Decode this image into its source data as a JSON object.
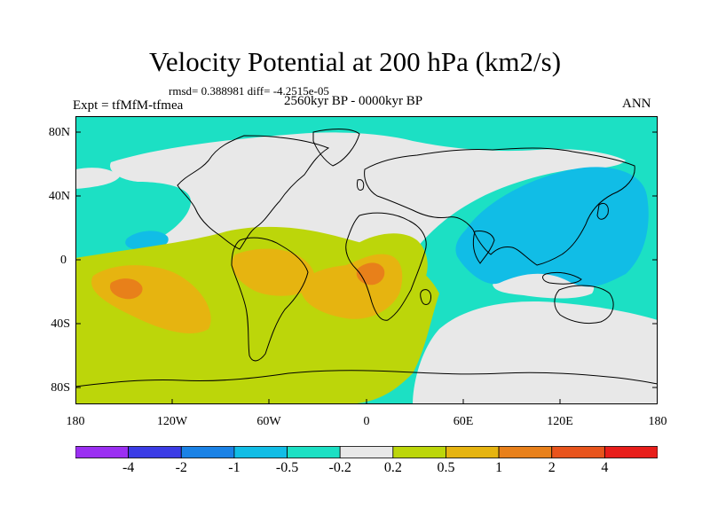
{
  "header": {
    "title": "Velocity Potential at 200 hPa (km2/s)",
    "stats": "rmsd= 0.388981 diff= -4.2515e-05",
    "experiment": "Expt = tfMfM-tfmea",
    "period": "2560kyr BP - 0000kyr BP",
    "season": "ANN"
  },
  "axes": {
    "y_ticks": [
      "80N",
      "40N",
      "0",
      "40S",
      "80S"
    ],
    "x_ticks": [
      "180",
      "120W",
      "60W",
      "0",
      "60E",
      "120E",
      "180"
    ]
  },
  "colorbar": {
    "colors": [
      "#9b2ff2",
      "#3b3ce6",
      "#1a82e6",
      "#11bde6",
      "#1ce0c4",
      "#e8e8e8",
      "#bcd60a",
      "#e6b410",
      "#e8801a",
      "#e8541c",
      "#e81e1a"
    ],
    "labels": [
      "-4",
      "-2",
      "-1",
      "-0.5",
      "-0.2",
      "0.2",
      "0.5",
      "1",
      "2",
      "4"
    ]
  },
  "field_colors": {
    "ocean": "#1ce0c4",
    "neutral": "#e8e8e8",
    "pos1": "#bcd60a",
    "pos2": "#e6b410",
    "pos3": "#e8801a",
    "neg1": "#11bde6",
    "coast": "#000000"
  }
}
